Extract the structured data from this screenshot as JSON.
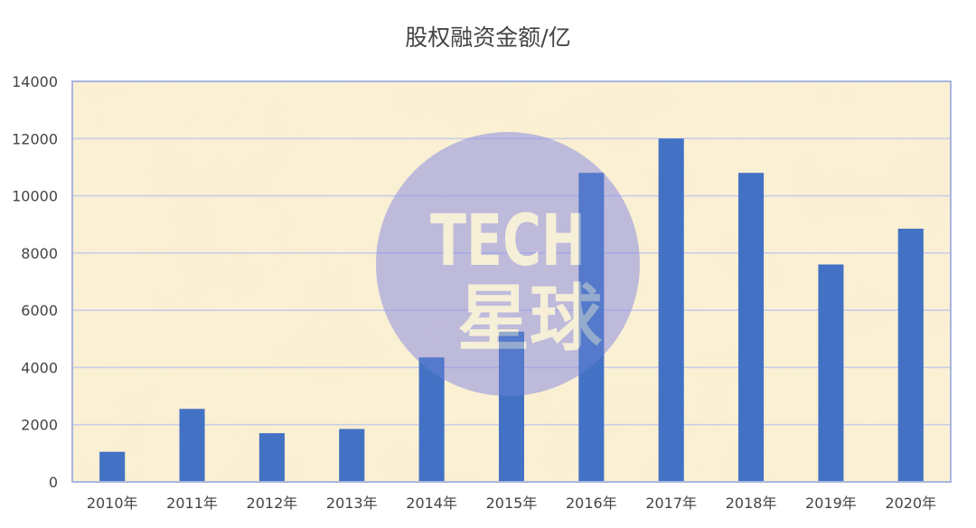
{
  "chart_data": {
    "type": "bar",
    "title": "股权融资金额/亿",
    "xlabel": "",
    "ylabel": "",
    "categories": [
      "2010年",
      "2011年",
      "2012年",
      "2013年",
      "2014年",
      "2015年",
      "2016年",
      "2017年",
      "2018年",
      "2019年",
      "2020年"
    ],
    "values": [
      1050,
      2550,
      1700,
      1850,
      4350,
      5250,
      10800,
      12000,
      10800,
      7600,
      8850
    ],
    "ylim": [
      0,
      14000
    ],
    "yticks": [
      0,
      2000,
      4000,
      6000,
      8000,
      10000,
      12000,
      14000
    ],
    "grid": true,
    "legend": "none",
    "bar_color": "#4472c4",
    "plot_background": "#fbf1d4",
    "gridline_color": "#c9cee6",
    "frame_color": "#a9b6dd"
  },
  "watermark": {
    "line1": "TECH",
    "line2": "星球",
    "circle_color": "#8c8ee0"
  }
}
